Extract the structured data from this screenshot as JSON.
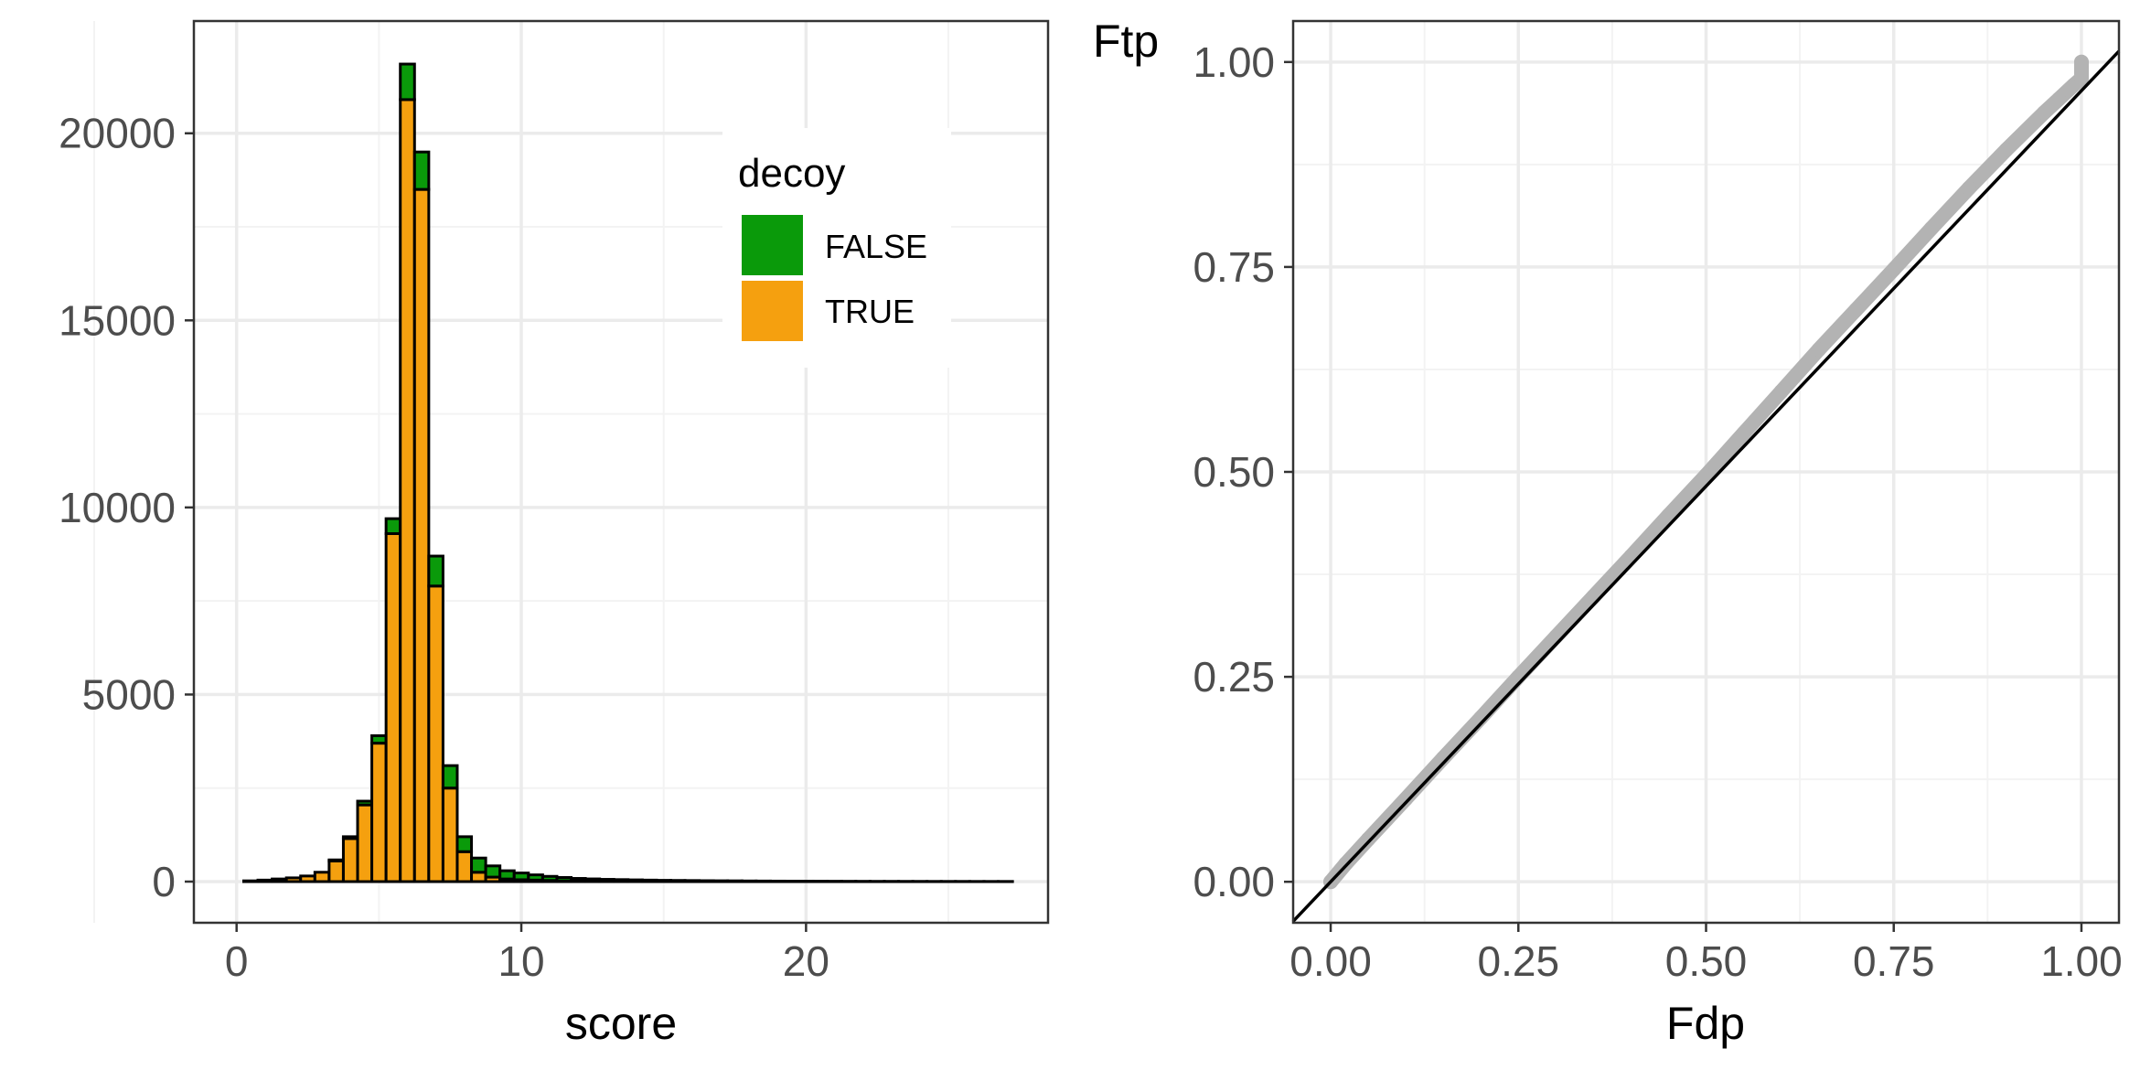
{
  "chart_data": [
    {
      "type": "bar",
      "stacked": true,
      "xlabel": "score",
      "ylabel": "",
      "xlim": [
        -1.5,
        28.5
      ],
      "ylim": [
        -1100,
        23000
      ],
      "x_ticks": [
        0,
        10,
        20
      ],
      "x_minor_ticks": [
        -5,
        5,
        15,
        25
      ],
      "y_ticks": [
        0,
        5000,
        10000,
        15000,
        20000
      ],
      "y_minor_ticks": [
        2500,
        7500,
        12500,
        17500
      ],
      "grid": true,
      "legend": {
        "title": "decoy",
        "position": "top-right",
        "entries": [
          {
            "label": "FALSE",
            "color": "#0a9a0a"
          },
          {
            "label": "TRUE",
            "color": "#f5a00f"
          }
        ]
      },
      "bin_width": 0.5,
      "bin_start": -0.25,
      "series": [
        {
          "name": "TRUE",
          "color": "#f5a00f",
          "values": [
            0,
            20,
            40,
            70,
            100,
            150,
            250,
            550,
            1150,
            2050,
            3700,
            9300,
            20900,
            18500,
            7900,
            2500,
            800,
            250,
            120,
            70,
            50,
            40,
            30,
            20,
            15,
            12,
            10,
            8,
            6,
            5,
            4,
            3,
            3,
            2,
            2,
            2,
            1,
            1,
            1,
            1,
            1,
            1,
            1,
            1,
            1,
            1,
            1,
            1,
            1,
            1,
            1,
            1,
            1,
            1,
            1
          ]
        },
        {
          "name": "FALSE",
          "color": "#0a9a0a",
          "values": [
            0,
            0,
            0,
            0,
            0,
            0,
            0,
            30,
            50,
            100,
            200,
            400,
            950,
            1000,
            800,
            600,
            400,
            380,
            300,
            220,
            180,
            140,
            110,
            90,
            70,
            60,
            50,
            45,
            40,
            35,
            30,
            28,
            25,
            22,
            20,
            18,
            16,
            14,
            12,
            11,
            10,
            9,
            8,
            7,
            6,
            5,
            5,
            4,
            4,
            3,
            3,
            3,
            2,
            2,
            2
          ]
        }
      ]
    },
    {
      "type": "scatter",
      "xlabel": "Fdp",
      "ylabel": "Ftp",
      "xlim": [
        -0.05,
        1.05
      ],
      "ylim": [
        -0.05,
        1.05
      ],
      "x_ticks": [
        0,
        0.25,
        0.5,
        0.75,
        1
      ],
      "x_tick_labels": [
        "0.00",
        "0.25",
        "0.50",
        "0.75",
        "1.00"
      ],
      "y_ticks": [
        0,
        0.25,
        0.5,
        0.75,
        1
      ],
      "y_tick_labels": [
        "0.00",
        "0.25",
        "0.50",
        "0.75",
        "1.00"
      ],
      "grid": true,
      "point_color": "#b3b3b3",
      "reference_line": {
        "intercept": 0,
        "slope": 0.965,
        "color": "#000000"
      },
      "points": [
        [
          0,
          0
        ],
        [
          0.02,
          0.022
        ],
        [
          0.05,
          0.052
        ],
        [
          0.1,
          0.101
        ],
        [
          0.15,
          0.151
        ],
        [
          0.2,
          0.2
        ],
        [
          0.25,
          0.25
        ],
        [
          0.3,
          0.299
        ],
        [
          0.35,
          0.348
        ],
        [
          0.4,
          0.397
        ],
        [
          0.45,
          0.447
        ],
        [
          0.5,
          0.496
        ],
        [
          0.55,
          0.547
        ],
        [
          0.6,
          0.598
        ],
        [
          0.65,
          0.649
        ],
        [
          0.7,
          0.698
        ],
        [
          0.75,
          0.747
        ],
        [
          0.8,
          0.797
        ],
        [
          0.85,
          0.846
        ],
        [
          0.9,
          0.893
        ],
        [
          0.95,
          0.938
        ],
        [
          0.97,
          0.955
        ],
        [
          0.99,
          0.972
        ],
        [
          1,
          0.98
        ],
        [
          1,
          0.99
        ],
        [
          1,
          1
        ]
      ]
    }
  ]
}
